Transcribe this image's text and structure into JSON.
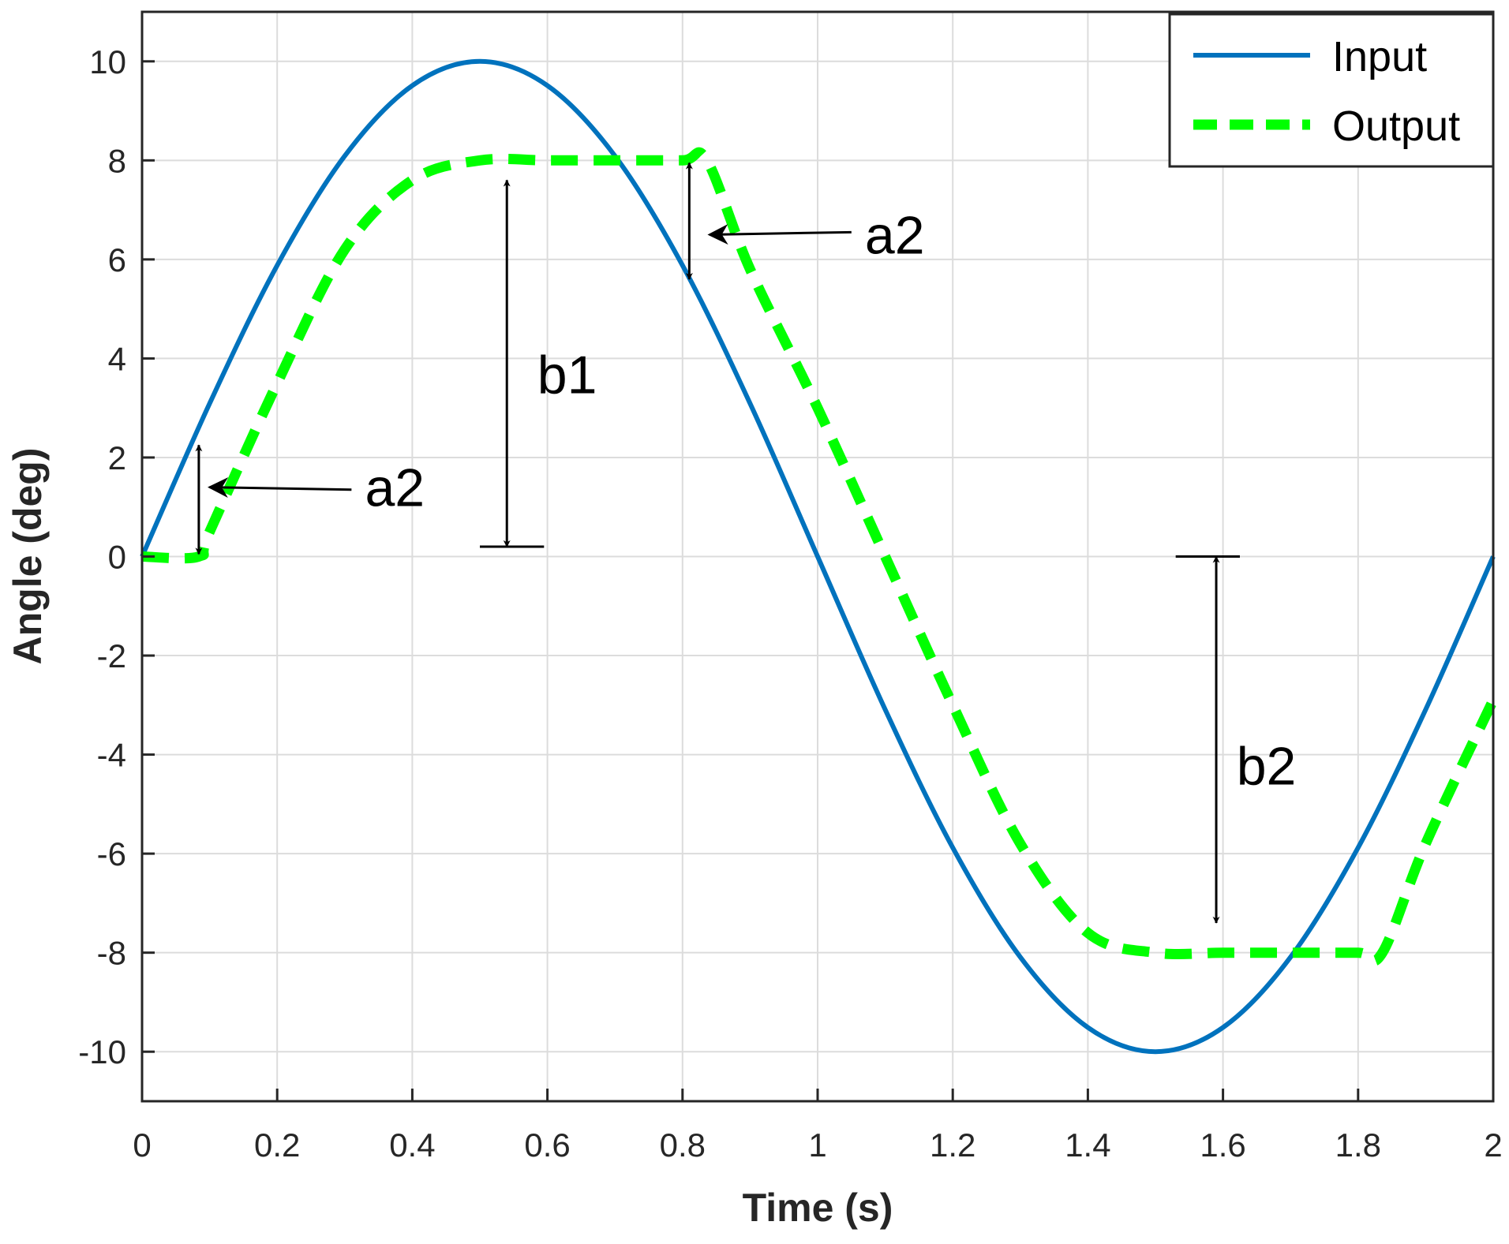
{
  "chart_data": {
    "type": "line",
    "xlabel": "Time (s)",
    "ylabel": "Angle (deg)",
    "xlim": [
      0,
      2
    ],
    "ylim": [
      -11,
      11
    ],
    "grid": true,
    "legend_position": "top-right",
    "x_ticks": [
      "0",
      "0.2",
      "0.4",
      "0.6",
      "0.8",
      "1",
      "1.2",
      "1.4",
      "1.6",
      "1.8",
      "2"
    ],
    "y_ticks": [
      "-10",
      "-8",
      "-6",
      "-4",
      "-2",
      "0",
      "2",
      "4",
      "6",
      "8",
      "10"
    ],
    "series": [
      {
        "name": "Input",
        "color": "#0072BD",
        "style": "solid",
        "x": [
          0,
          0.1,
          0.2,
          0.3,
          0.4,
          0.5,
          0.6,
          0.7,
          0.8,
          0.9,
          1.0,
          1.1,
          1.2,
          1.3,
          1.4,
          1.5,
          1.6,
          1.7,
          1.8,
          1.9,
          2.0
        ],
        "y": [
          0,
          3.09,
          5.88,
          8.09,
          9.51,
          10,
          9.51,
          8.09,
          5.88,
          3.09,
          0,
          -3.09,
          -5.88,
          -8.09,
          -9.51,
          -10,
          -9.51,
          -8.09,
          -5.88,
          -3.09,
          0
        ]
      },
      {
        "name": "Output",
        "color": "#00FF00",
        "style": "dashed",
        "x": [
          0,
          0.084,
          0.1,
          0.2,
          0.3,
          0.4,
          0.5,
          0.6,
          0.7,
          0.8,
          0.836,
          0.9,
          1.0,
          1.1,
          1.2,
          1.3,
          1.4,
          1.5,
          1.6,
          1.7,
          1.8,
          1.836,
          1.9,
          2.0
        ],
        "y": [
          0,
          0,
          0.5,
          3.5,
          6.2,
          7.6,
          8,
          8,
          8,
          8,
          8,
          5.8,
          3.0,
          0,
          -3.0,
          -5.8,
          -7.6,
          -8,
          -8,
          -8,
          -8,
          -8,
          -5.8,
          -2.9
        ]
      }
    ],
    "annotations": [
      {
        "label": "a2",
        "target_x": 0.1,
        "target_y": 1.4
      },
      {
        "label": "a2",
        "target_x": 0.84,
        "target_y": 6.5
      },
      {
        "label": "b1",
        "x": 0.54,
        "from_y": 0.2,
        "to_y": 7.6
      },
      {
        "label": "b2",
        "x": 1.59,
        "from_y": 0,
        "to_y": -7.4
      }
    ]
  }
}
